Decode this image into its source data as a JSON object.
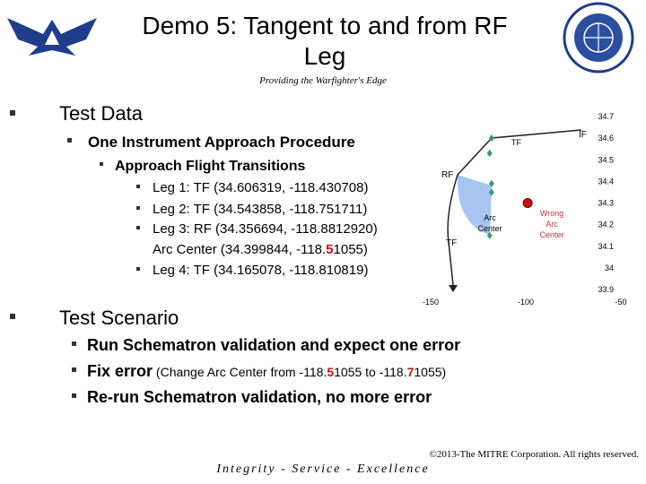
{
  "header": {
    "title_lines": [
      "Demo 5: Tangent to and from RF",
      "Leg"
    ],
    "tagline": "Providing the Warfighter's Edge"
  },
  "test_data": {
    "heading": "Test Data",
    "procedure": "One Instrument Approach Procedure",
    "transitions": "Approach Flight Transitions",
    "legs": [
      [
        "Leg 1: TF (34.606319, -118.430708)"
      ],
      [
        "Leg 2: TF (34.543858, -118.751711)"
      ],
      [
        "Leg 3: RF (34.356694, -118.8812920)"
      ],
      [
        "Arc Center  (34.399844, -118.",
        "5",
        "1055)"
      ],
      [
        "Leg 4: TF (34.165078, -118.810819)"
      ]
    ]
  },
  "test_scenario": {
    "heading": "Test Scenario",
    "items": [
      [
        "Run Schematron validation and expect one error"
      ],
      [
        "Fix error",
        " (Change Arc Center from -118.",
        "5",
        "1055 to -118.",
        "7",
        "1055)"
      ],
      [
        "Re-run Schematron validation, no more error"
      ]
    ]
  },
  "chart": {
    "type": "scatter",
    "xlim": [
      -150,
      -50
    ],
    "xticks": [
      -150,
      -100,
      -50
    ],
    "ylim": [
      33.9,
      34.7
    ],
    "yticks": [
      34.7,
      34.6,
      34.5,
      34.4,
      34.3,
      34.2,
      34.1,
      34,
      33.9
    ],
    "points": {
      "color": "#2e9e6a",
      "x": [
        -118,
        -119,
        -118,
        -118,
        -119
      ],
      "y": [
        34.6,
        34.53,
        34.39,
        34.35,
        34.15
      ]
    },
    "wrong_center": {
      "color": "#cc1111",
      "x": [
        -99
      ],
      "y": [
        34.3
      ]
    },
    "labels": {
      "if": "IF",
      "tf1": "TF",
      "rf": "RF",
      "arc_center": [
        "Arc",
        "Center"
      ],
      "tf2": "TF",
      "wrong": [
        "Wrong",
        "Arc",
        "Center"
      ]
    }
  },
  "footer": {
    "copyright": "©2013-The MITRE Corporation. All rights reserved.",
    "motto": "Integrity - Service - Excellence"
  }
}
